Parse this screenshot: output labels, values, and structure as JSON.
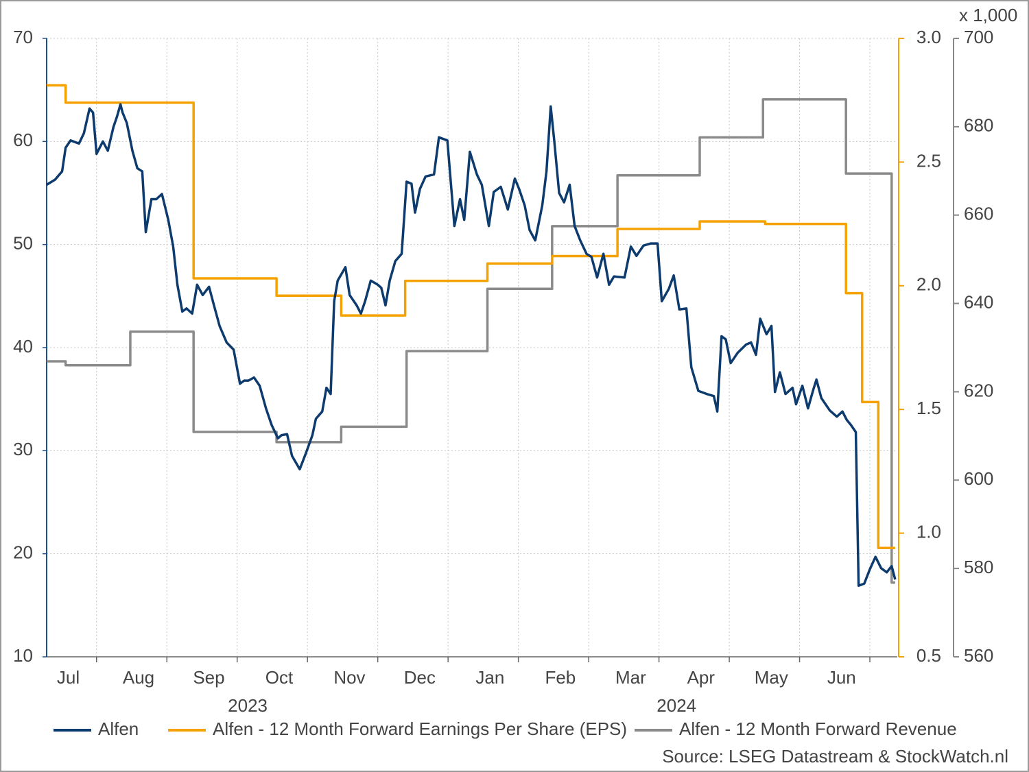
{
  "chart_data": {
    "type": "line",
    "xlim": [
      0.29,
      12.39
    ],
    "xticks": [
      {
        "value": 0.5,
        "label": "Jul"
      },
      {
        "value": 1.5,
        "label": "Aug"
      },
      {
        "value": 2.5,
        "label": "Sep"
      },
      {
        "value": 3.5,
        "label": "Oct"
      },
      {
        "value": 4.5,
        "label": "Nov"
      },
      {
        "value": 5.5,
        "label": "Dec"
      },
      {
        "value": 6.5,
        "label": "Jan"
      },
      {
        "value": 7.5,
        "label": "Feb"
      },
      {
        "value": 8.5,
        "label": "Mar"
      },
      {
        "value": 9.5,
        "label": "Apr"
      },
      {
        "value": 10.5,
        "label": "May"
      },
      {
        "value": 11.5,
        "label": "Jun"
      }
    ],
    "xgrid": [
      1,
      2,
      3,
      4,
      5,
      6,
      7,
      8,
      9,
      10,
      11,
      12
    ],
    "x_group_labels": [
      {
        "value": 3.15,
        "label": "2023"
      },
      {
        "value": 9.25,
        "label": "2024"
      }
    ],
    "ylim": [
      10,
      70
    ],
    "yticks": [
      10,
      20,
      30,
      40,
      50,
      60,
      70
    ],
    "y2lim": [
      0.5,
      3.0
    ],
    "y2ticks": [
      0.5,
      {
        "value": 1,
        "label": "1.0"
      },
      1.5,
      {
        "value": 2,
        "label": "2.0"
      },
      2.5,
      {
        "value": 3,
        "label": "3.0"
      }
    ],
    "y3lim": [
      560,
      700
    ],
    "y3ticks": [
      560,
      580,
      600,
      620,
      640,
      660,
      680,
      700
    ],
    "y3_unit_label": "x 1,000",
    "grid": true,
    "legend": "bottom",
    "source": "Source: LSEG Datastream & StockWatch.nl",
    "series": [
      {
        "name": "Alfen",
        "color": "#0d3b6e",
        "axis": "y",
        "x": [
          0.29,
          0.41,
          0.51,
          0.56,
          0.63,
          0.75,
          0.82,
          0.9,
          0.95,
          1.0,
          1.09,
          1.16,
          1.24,
          1.29,
          1.34,
          1.37,
          1.43,
          1.51,
          1.58,
          1.65,
          1.7,
          1.78,
          1.85,
          1.93,
          2.02,
          2.09,
          2.15,
          2.22,
          2.28,
          2.36,
          2.43,
          2.51,
          2.6,
          2.67,
          2.75,
          2.85,
          2.95,
          3.04,
          3.1,
          3.16,
          3.24,
          3.32,
          3.41,
          3.49,
          3.58,
          3.63,
          3.71,
          3.78,
          3.89,
          3.98,
          4.07,
          4.12,
          4.21,
          4.27,
          4.33,
          4.38,
          4.43,
          4.54,
          4.6,
          4.7,
          4.76,
          4.82,
          4.9,
          5.0,
          5.05,
          5.11,
          5.17,
          5.25,
          5.34,
          5.41,
          5.48,
          5.53,
          5.6,
          5.68,
          5.8,
          5.87,
          5.99,
          6.09,
          6.17,
          6.23,
          6.31,
          6.41,
          6.48,
          6.58,
          6.65,
          6.75,
          6.85,
          6.95,
          7.01,
          7.09,
          7.16,
          7.24,
          7.34,
          7.4,
          7.46,
          7.51,
          7.58,
          7.65,
          7.73,
          7.8,
          7.88,
          7.97,
          8.04,
          8.12,
          8.21,
          8.29,
          8.36,
          8.51,
          8.6,
          8.68,
          8.78,
          8.88,
          8.98,
          9.04,
          9.14,
          9.21,
          9.29,
          9.39,
          9.46,
          9.56,
          9.68,
          9.78,
          9.83,
          9.89,
          9.95,
          10.02,
          10.12,
          10.24,
          10.31,
          10.38,
          10.44,
          10.53,
          10.6,
          10.65,
          10.72,
          10.8,
          10.9,
          10.95,
          11.04,
          11.12,
          11.19,
          11.24,
          11.31,
          11.43,
          11.53,
          11.61,
          11.67,
          11.73,
          11.8,
          11.84,
          11.92,
          12.0,
          12.08,
          12.16,
          12.24,
          12.31,
          12.36
        ],
        "values": [
          55.8,
          56.3,
          57.1,
          59.4,
          60.1,
          59.8,
          60.8,
          63.2,
          62.8,
          58.8,
          60.0,
          59.1,
          61.4,
          62.4,
          63.6,
          62.8,
          61.8,
          59.1,
          57.4,
          57.1,
          51.2,
          54.4,
          54.4,
          54.9,
          52.4,
          49.8,
          46.1,
          43.5,
          43.8,
          43.3,
          46.1,
          45.1,
          45.9,
          44.1,
          42.1,
          40.5,
          39.8,
          36.5,
          36.8,
          36.8,
          37.1,
          36.3,
          34.1,
          32.5,
          31.2,
          31.5,
          31.6,
          29.5,
          28.2,
          29.8,
          31.5,
          33.1,
          33.8,
          36.1,
          35.5,
          44.5,
          46.5,
          47.8,
          45.1,
          44.1,
          43.3,
          44.5,
          46.5,
          46.1,
          45.8,
          44.1,
          46.5,
          48.4,
          49.1,
          56.1,
          55.9,
          53.1,
          55.4,
          56.6,
          56.8,
          60.4,
          60.1,
          51.8,
          54.4,
          52.4,
          59.0,
          56.8,
          55.8,
          51.8,
          55.1,
          55.6,
          53.4,
          56.4,
          55.4,
          53.8,
          51.4,
          50.4,
          53.8,
          57.1,
          63.4,
          60.1,
          55.0,
          54.1,
          55.8,
          51.8,
          50.4,
          49.1,
          48.8,
          46.8,
          49.1,
          46.1,
          46.9,
          46.8,
          49.8,
          48.9,
          49.9,
          50.1,
          50.1,
          44.5,
          45.7,
          47.0,
          43.7,
          43.8,
          38.1,
          35.8,
          35.5,
          35.3,
          33.8,
          41.1,
          40.8,
          38.5,
          39.5,
          40.3,
          40.5,
          39.3,
          42.8,
          41.3,
          42.1,
          35.7,
          37.6,
          35.5,
          36.1,
          34.5,
          36.3,
          34.1,
          35.8,
          36.9,
          35.1,
          33.9,
          33.3,
          33.8,
          33.0,
          32.5,
          31.8,
          16.9,
          17.1,
          18.5,
          19.7,
          18.6,
          18.2,
          18.8,
          17.5
        ]
      },
      {
        "name": "Alfen - 12 Month Forward Earnings Per Share (EPS)",
        "color": "#f5a200",
        "axis": "y2",
        "x": [
          0.29,
          0.56,
          0.56,
          2.38,
          2.38,
          3.56,
          3.56,
          4.48,
          4.48,
          5.39,
          5.39,
          6.56,
          6.56,
          7.48,
          7.48,
          8.41,
          8.41,
          9.58,
          9.58,
          10.51,
          10.51,
          11.66,
          11.66,
          11.89,
          11.89,
          12.12,
          12.12,
          12.36
        ],
        "values": [
          2.81,
          2.81,
          2.74,
          2.74,
          2.03,
          2.03,
          1.96,
          1.96,
          1.88,
          1.88,
          2.02,
          2.02,
          2.09,
          2.09,
          2.12,
          2.12,
          2.23,
          2.23,
          2.26,
          2.26,
          2.25,
          2.25,
          1.97,
          1.97,
          1.53,
          1.53,
          0.94,
          0.94
        ]
      },
      {
        "name": "Alfen - 12 Month Forward Revenue",
        "color": "#8a8a8a",
        "axis": "y3",
        "x": [
          0.29,
          0.56,
          0.56,
          1.48,
          1.48,
          2.38,
          2.38,
          3.56,
          3.56,
          4.48,
          4.48,
          5.41,
          5.41,
          6.56,
          6.56,
          7.48,
          7.48,
          8.41,
          8.41,
          9.58,
          9.58,
          10.48,
          10.48,
          11.66,
          11.66,
          12.31,
          12.31,
          12.36
        ],
        "values": [
          626.9,
          626.9,
          626.0,
          626.0,
          633.6,
          633.6,
          610.9,
          610.9,
          608.6,
          608.6,
          612.1,
          612.1,
          629.2,
          629.2,
          643.3,
          643.3,
          657.5,
          657.5,
          669.0,
          669.0,
          677.6,
          677.6,
          686.2,
          686.2,
          669.4,
          669.4,
          576.8,
          576.8
        ]
      }
    ]
  }
}
